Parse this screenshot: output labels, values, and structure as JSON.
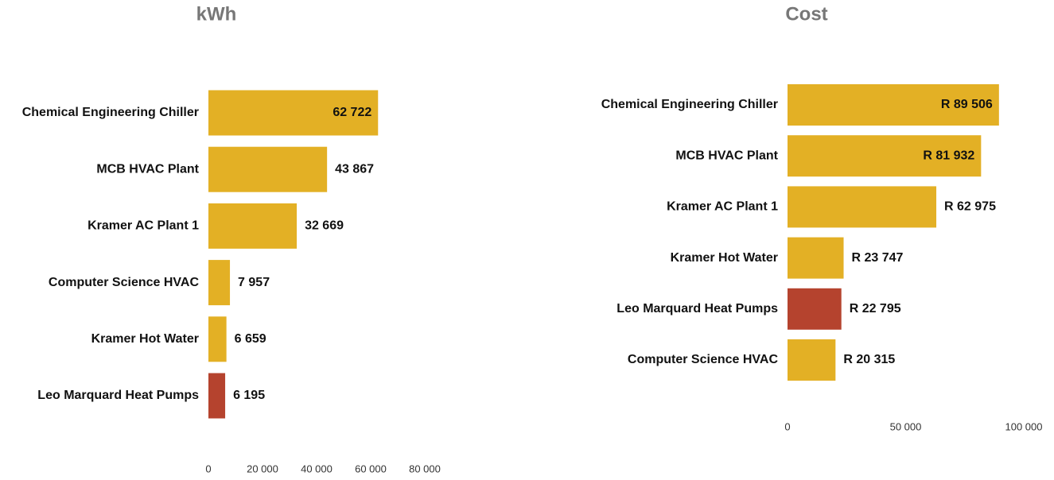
{
  "chart_data": [
    {
      "type": "bar",
      "orientation": "horizontal",
      "title": "kWh",
      "categories": [
        "Chemical Engineering Chiller",
        "MCB HVAC Plant",
        "Kramer AC Plant 1",
        "Computer Science HVAC",
        "Kramer Hot Water",
        "Leo Marquard Heat Pumps"
      ],
      "values": [
        62722,
        43867,
        32669,
        7957,
        6659,
        6195
      ],
      "value_labels": [
        "62 722",
        "43 867",
        "32 669",
        "7 957",
        "6 659",
        "6 195"
      ],
      "colors": [
        "#e3b025",
        "#e3b025",
        "#e3b025",
        "#e3b025",
        "#e3b025",
        "#b5432e"
      ],
      "xlim": [
        0,
        80000
      ],
      "xticks": [
        0,
        {
          "value": 20000,
          "label": "20 000"
        },
        {
          "value": 40000,
          "label": "40 000"
        },
        {
          "value": 60000,
          "label": "60 000"
        },
        {
          "value": 80000,
          "label": "80 000"
        }
      ]
    },
    {
      "type": "bar",
      "orientation": "horizontal",
      "title": "Cost",
      "categories": [
        "Chemical Engineering Chiller",
        "MCB HVAC Plant",
        "Kramer AC Plant 1",
        "Kramer Hot Water",
        "Leo Marquard Heat Pumps",
        "Computer Science HVAC"
      ],
      "values": [
        89506,
        81932,
        62975,
        23747,
        22795,
        20315
      ],
      "value_labels": [
        "R 89 506",
        "R 81 932",
        "R 62 975",
        "R 23 747",
        "R 22 795",
        "R 20 315"
      ],
      "colors": [
        "#e3b025",
        "#e3b025",
        "#e3b025",
        "#e3b025",
        "#b5432e",
        "#e3b025"
      ],
      "xlim": [
        0,
        100000
      ],
      "xticks": [
        0,
        {
          "value": 50000,
          "label": "50 000"
        },
        {
          "value": 100000,
          "label": "100 000"
        }
      ]
    }
  ]
}
